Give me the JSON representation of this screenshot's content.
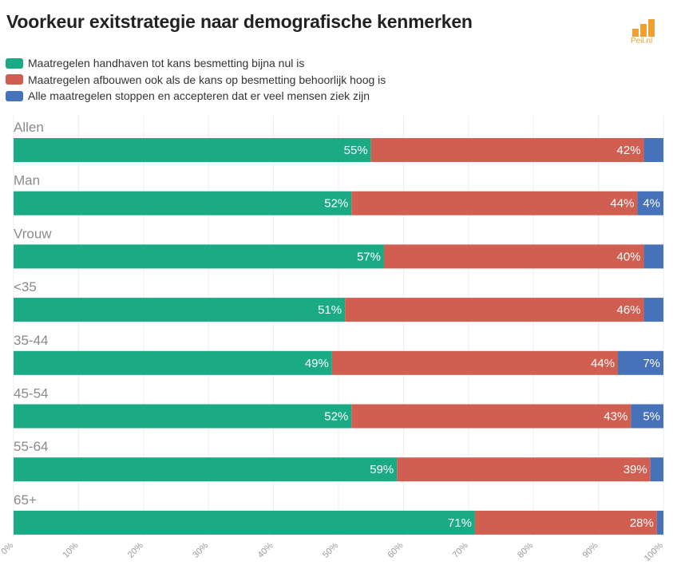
{
  "title": "Voorkeur exitstrategie naar demografische kenmerken",
  "logo": {
    "text": "Peil.nl",
    "icon": "bar-chart-logo-icon",
    "color": "#f0a030"
  },
  "chart_data": {
    "type": "bar",
    "orientation": "horizontal",
    "stacked": true,
    "title": "Voorkeur exitstrategie naar demografische kenmerken",
    "categories": [
      "Allen",
      "Man",
      "Vrouw",
      "<35",
      "35-44",
      "45-54",
      "55-64",
      "65+"
    ],
    "series": [
      {
        "name": "Maatregelen handhaven tot kans besmetting bijna nul is",
        "color": "#1aaa86",
        "values": [
          55,
          52,
          57,
          51,
          49,
          52,
          59,
          71
        ],
        "labels": [
          "55%",
          "52%",
          "57%",
          "51%",
          "49%",
          "52%",
          "59%",
          "71%"
        ]
      },
      {
        "name": "Maatregelen afbouwen ook als de kans op besmetting behoorlijk hoog is",
        "color": "#d05f51",
        "values": [
          42,
          44,
          40,
          46,
          44,
          43,
          39,
          28
        ],
        "labels": [
          "42%",
          "44%",
          "40%",
          "46%",
          "44%",
          "43%",
          "39%",
          "28%"
        ]
      },
      {
        "name": "Alle maatregelen stoppen en accepteren dat er veel mensen ziek zijn",
        "color": "#4572b8",
        "values": [
          3,
          4,
          3,
          3,
          7,
          5,
          2,
          1
        ],
        "labels": [
          "",
          "4%",
          "",
          "",
          "7%",
          "5%",
          "",
          ""
        ]
      }
    ],
    "xlim": [
      0,
      100
    ],
    "xticks": [
      "0%",
      "10%",
      "20%",
      "30%",
      "40%",
      "50%",
      "60%",
      "70%",
      "80%",
      "90%",
      "100%"
    ],
    "grid": true,
    "legend": "top-left"
  }
}
